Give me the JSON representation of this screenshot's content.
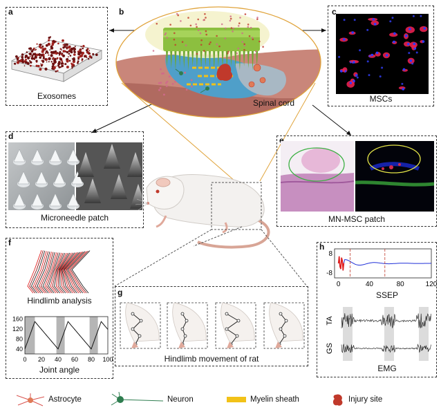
{
  "panels": {
    "a": {
      "letter": "a",
      "caption": "Exosomes"
    },
    "b": {
      "letter": "b",
      "caption": "Spinal cord"
    },
    "c": {
      "letter": "c",
      "caption": "MSCs"
    },
    "d": {
      "letter": "d",
      "caption": "Microneedle patch"
    },
    "e": {
      "letter": "e",
      "caption": "MN-MSC patch"
    },
    "f": {
      "letter": "f",
      "caption_top": "Hindlimb analysis",
      "caption_bottom": "Joint angle",
      "y_ticks": [
        "160",
        "120",
        "80",
        "40"
      ],
      "x_ticks": [
        "0",
        "20",
        "40",
        "60",
        "80",
        "100"
      ]
    },
    "g": {
      "letter": "g",
      "caption": "Hindlimb movement of rat"
    },
    "h": {
      "letter": "h",
      "caption_top": "SSEP",
      "caption_bottom": "EMG",
      "y_ticks": [
        "8",
        "-8"
      ],
      "x_ticks": [
        "0",
        "40",
        "80",
        "120"
      ],
      "emg_labels": [
        "TA",
        "GS"
      ]
    }
  },
  "legend": [
    {
      "label": "Astrocyte",
      "icon": "astrocyte-icon",
      "color": "#d9534f"
    },
    {
      "label": "Neuron",
      "icon": "neuron-icon",
      "color": "#2e7d4f"
    },
    {
      "label": "Myelin sheath",
      "icon": "myelin-sheath-icon",
      "color": "#f2c218"
    },
    {
      "label": "Injury site",
      "icon": "injury-site-icon",
      "color": "#c0392b"
    }
  ]
}
